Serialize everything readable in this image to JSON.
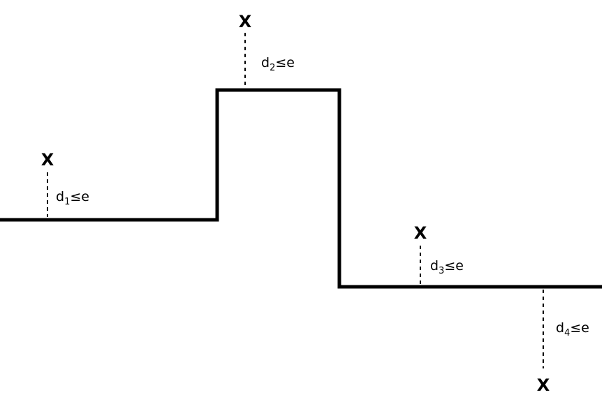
{
  "diagram": {
    "points": [
      {
        "marker": "X",
        "distance": {
          "var": "d",
          "sub": "1",
          "rel": "≤e"
        }
      },
      {
        "marker": "X",
        "distance": {
          "var": "d",
          "sub": "2",
          "rel": "≤e"
        }
      },
      {
        "marker": "X",
        "distance": {
          "var": "d",
          "sub": "3",
          "rel": "≤e"
        }
      },
      {
        "marker": "X",
        "distance": {
          "var": "d",
          "sub": "4",
          "rel": "≤e"
        }
      }
    ]
  }
}
